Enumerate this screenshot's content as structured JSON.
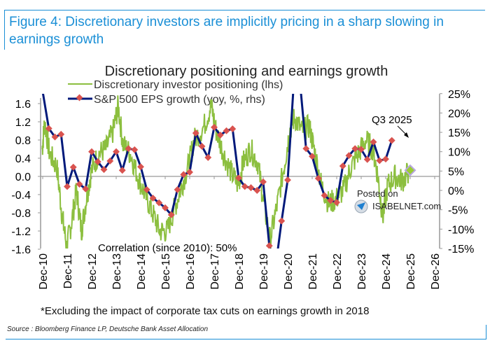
{
  "figure": {
    "title": "Figure 4: Discretionary investors are implicitly pricing in a sharp slowing in earnings growth",
    "footnote": "*Excluding the impact of corporate tax cuts on earnings growth in 2018",
    "source": "Source : Bloomberg Finance LP, Deutsche Bank Asset Allocation",
    "watermark_line1": "Posted on",
    "watermark_line2": "ISABELNET.com"
  },
  "chart_data": {
    "type": "line",
    "title": "Discretionary positioning and earnings growth",
    "xlabel": "",
    "ylabel_left": "",
    "ylabel_right": "",
    "x_ticks": [
      "Dec-10",
      "Dec-11",
      "Dec-12",
      "Dec-13",
      "Dec-14",
      "Dec-15",
      "Dec-16",
      "Dec-17",
      "Dec-18",
      "Dec-19",
      "Dec-20",
      "Dec-21",
      "Dec-22",
      "Dec-23",
      "Dec-24",
      "Dec-25",
      "Dec-26"
    ],
    "x_range": [
      2010.92,
      2026.92
    ],
    "y_left_ticks": [
      "1.6",
      "1.2",
      "0.8",
      "0.4",
      "0.0",
      "-0.4",
      "-0.8",
      "-1.2",
      "-1.6"
    ],
    "y_left_range": [
      -1.6,
      1.8
    ],
    "y_right_ticks": [
      "25%",
      "20%",
      "15%",
      "10%",
      "5%",
      "0%",
      "-5%",
      "-10%",
      "-15%"
    ],
    "y_right_range": [
      -15,
      25
    ],
    "grid": false,
    "legend_placement": "top-left",
    "annotations": {
      "correlation": "Correlation (since 2010): 50%",
      "q3_label": "Q3 2025"
    },
    "series": [
      {
        "name": "Discretionary investor positioning (lhs)",
        "axis": "left",
        "color": "#8cbf3f",
        "x": [
          2010.9,
          2011.0,
          2011.2,
          2011.5,
          2011.7,
          2011.9,
          2012.1,
          2012.3,
          2012.5,
          2012.7,
          2012.9,
          2013.2,
          2013.5,
          2013.8,
          2014.0,
          2014.2,
          2014.5,
          2014.8,
          2015.1,
          2015.4,
          2015.7,
          2016.0,
          2016.3,
          2016.6,
          2016.9,
          2017.1,
          2017.5,
          2017.8,
          2018.0,
          2018.3,
          2018.6,
          2018.9,
          2019.1,
          2019.4,
          2019.7,
          2019.95,
          2020.2,
          2020.5,
          2020.8,
          2021.0,
          2021.2,
          2021.5,
          2021.8,
          2022.0,
          2022.3,
          2022.6,
          2022.9,
          2023.2,
          2023.5,
          2023.8,
          2024.1,
          2024.4,
          2024.6,
          2024.8,
          2025.0,
          2025.3,
          2025.6,
          2025.85
        ],
        "values": [
          0.6,
          1.2,
          0.5,
          0.2,
          -0.8,
          -1.55,
          -1.0,
          -0.3,
          -1.2,
          -0.5,
          0.1,
          0.5,
          0.6,
          1.0,
          1.55,
          0.7,
          0.5,
          0.0,
          -0.4,
          -0.8,
          -1.2,
          -1.2,
          -0.7,
          -0.2,
          0.3,
          0.8,
          1.1,
          1.55,
          1.0,
          0.5,
          0.1,
          -0.2,
          0.3,
          0.6,
          0.3,
          -0.6,
          -1.4,
          -0.6,
          0.3,
          1.0,
          1.3,
          1.0,
          1.1,
          0.6,
          -0.2,
          -0.6,
          -0.5,
          -0.3,
          0.2,
          0.5,
          0.8,
          0.6,
          0.0,
          -0.9,
          -0.2,
          0.0,
          -0.1,
          0.1
        ]
      },
      {
        "name": "S&P 500 EPS growth (yoy, %, rhs)",
        "axis": "right",
        "color": "#00197a",
        "marker_color": "#d9534f",
        "x": [
          2010.92,
          2011.17,
          2011.42,
          2011.67,
          2011.92,
          2012.17,
          2012.42,
          2012.67,
          2012.92,
          2013.17,
          2013.42,
          2013.67,
          2013.92,
          2014.17,
          2014.42,
          2014.67,
          2014.92,
          2015.17,
          2015.42,
          2015.67,
          2015.92,
          2016.17,
          2016.42,
          2016.67,
          2016.92,
          2017.17,
          2017.42,
          2017.67,
          2017.92,
          2018.17,
          2018.42,
          2018.67,
          2018.92,
          2019.17,
          2019.42,
          2019.67,
          2019.92,
          2020.17,
          2020.42,
          2020.67,
          2020.92,
          2021.17,
          2021.42,
          2021.67,
          2021.92,
          2022.17,
          2022.42,
          2022.67,
          2022.92,
          2023.17,
          2023.42,
          2023.67,
          2023.92,
          2024.17,
          2024.42,
          2024.67,
          2024.92,
          2025.17,
          2025.42,
          2025.67
        ],
        "values": [
          25.5,
          16.0,
          13.8,
          14.5,
          1.0,
          6.0,
          1.6,
          0.4,
          10.0,
          7.4,
          5.4,
          7.6,
          10.0,
          5.2,
          10.8,
          10.5,
          6.1,
          0.2,
          -2.0,
          -3.2,
          -4.5,
          -6.3,
          0.2,
          4.1,
          4.7,
          14.8,
          11.4,
          8.5,
          16.3,
          14.3,
          15.4,
          15.9,
          3.2,
          1.0,
          0.7,
          0.0,
          2.2,
          -14.3,
          -20.0,
          -7.9,
          2.7,
          28.0,
          28.0,
          10.8,
          8.8,
          3.1,
          -1.3,
          -2.6,
          -3.1,
          6.3,
          9.0,
          10.8,
          10.6,
          8.0,
          12.5,
          7.7,
          8.1,
          12.9,
          null,
          null
        ],
        "q3_2025_value": 12.9
      },
      {
        "name": "Latest positioning point",
        "axis": "right",
        "color": "#b8a6e0",
        "x": [
          2025.92
        ],
        "values": [
          5.2
        ]
      }
    ]
  }
}
